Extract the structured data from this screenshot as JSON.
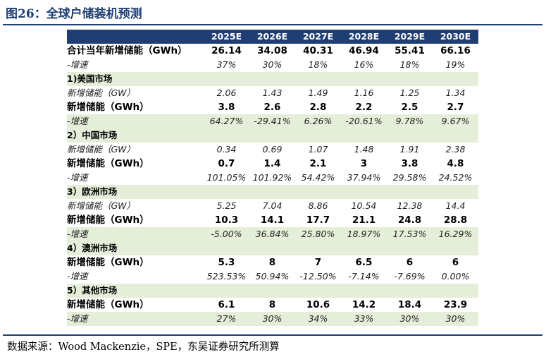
{
  "figure": {
    "title": "图26：全球户储装机预测",
    "source": "数据来源：Wood Mackenzie，SPE，东吴证券研究所测算"
  },
  "table": {
    "years": [
      "2025E",
      "2026E",
      "2027E",
      "2028E",
      "2029E",
      "2030E"
    ],
    "rows": [
      {
        "label": "合计当年新增储能（GWh）",
        "values": [
          "26.14",
          "34.08",
          "40.31",
          "46.94",
          "55.41",
          "66.16"
        ]
      },
      {
        "label": "-增速",
        "values": [
          "37%",
          "30%",
          "18%",
          "16%",
          "18%",
          "19%"
        ]
      },
      {
        "label": "1)美国市场",
        "values": []
      },
      {
        "label": "新增储能（GW）",
        "values": [
          "2.06",
          "1.43",
          "1.49",
          "1.16",
          "1.25",
          "1.34"
        ]
      },
      {
        "label": "新增储能（GWh）",
        "values": [
          "3.8",
          "2.6",
          "2.8",
          "2.2",
          "2.5",
          "2.7"
        ]
      },
      {
        "label": "-增速",
        "values": [
          "64.27%",
          "-29.41%",
          "6.26%",
          "-20.61%",
          "9.78%",
          "9.67%"
        ]
      },
      {
        "label": "2）中国市场",
        "values": []
      },
      {
        "label": "新增储能（GW）",
        "values": [
          "0.34",
          "0.69",
          "1.07",
          "1.48",
          "1.91",
          "2.38"
        ]
      },
      {
        "label": "新增储能（GWh）",
        "values": [
          "0.7",
          "1.4",
          "2.1",
          "3",
          "3.8",
          "4.8"
        ]
      },
      {
        "label": "-增速",
        "values": [
          "101.05%",
          "101.92%",
          "54.42%",
          "37.94%",
          "29.58%",
          "24.52%"
        ]
      },
      {
        "label": "3）欧洲市场",
        "values": []
      },
      {
        "label": "新增储能（GW）",
        "values": [
          "5.25",
          "7.04",
          "8.86",
          "10.54",
          "12.38",
          "14.4"
        ]
      },
      {
        "label": "新增储能（GWh）",
        "values": [
          "10.3",
          "14.1",
          "17.7",
          "21.1",
          "24.8",
          "28.8"
        ]
      },
      {
        "label": "-增速",
        "values": [
          "-5.00%",
          "36.84%",
          "25.80%",
          "18.97%",
          "17.53%",
          "16.29%"
        ]
      },
      {
        "label": "4）澳洲市场",
        "values": []
      },
      {
        "label": "新增储能（GWh）",
        "values": [
          "5.3",
          "8",
          "7",
          "6.5",
          "6",
          "6"
        ]
      },
      {
        "label": "-增速",
        "values": [
          "523.53%",
          "50.94%",
          "-12.50%",
          "-7.14%",
          "-7.69%",
          "0.00%"
        ]
      },
      {
        "label": "5）其他市场",
        "values": []
      },
      {
        "label": "新增储能（GWh）",
        "values": [
          "6.1",
          "8",
          "10.6",
          "14.2",
          "18.4",
          "23.9"
        ]
      },
      {
        "label": "-增速",
        "values": [
          "27%",
          "30%",
          "34%",
          "33%",
          "30%",
          "30%"
        ]
      }
    ]
  }
}
